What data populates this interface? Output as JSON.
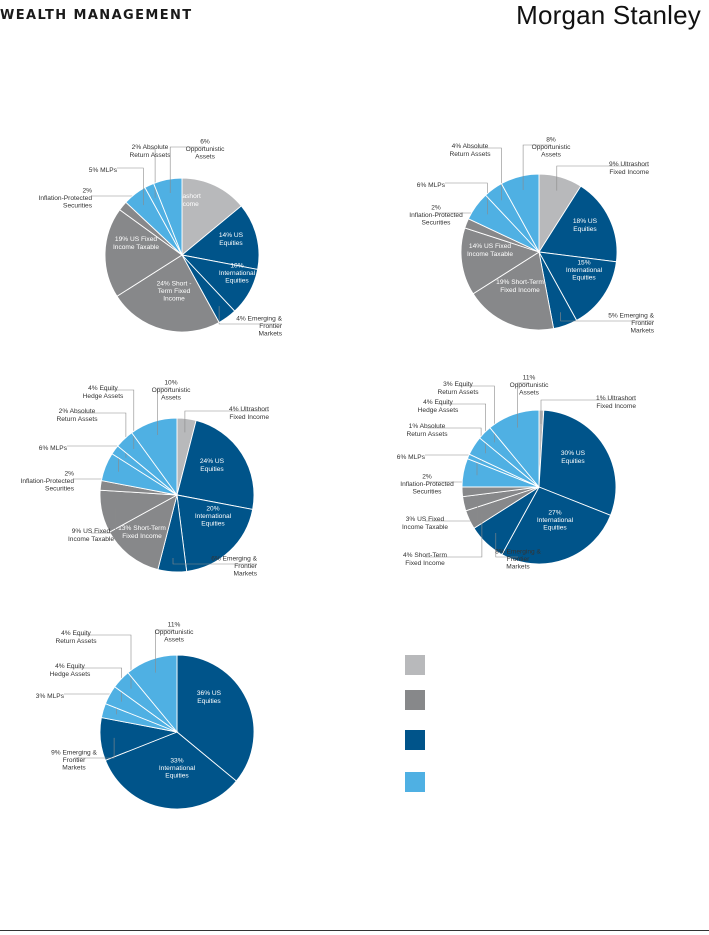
{
  "header": {
    "left": "WEALTH MANAGEMENT",
    "right": "Morgan Stanley"
  },
  "colors": {
    "light_gray": "#b8b9bb",
    "dark_gray": "#87888a",
    "navy": "#00548a",
    "light_blue": "#4fb0e3"
  },
  "legend": {
    "swatches": [
      "light_gray",
      "dark_gray",
      "navy",
      "light_blue"
    ]
  },
  "chart_data": [
    {
      "type": "pie",
      "slices": [
        {
          "label": "14% Ultrashort Fixed Income",
          "value": 14,
          "color": "light_gray"
        },
        {
          "label": "14% US Equities",
          "value": 14,
          "color": "navy"
        },
        {
          "label": "10% International Equities",
          "value": 10,
          "color": "navy"
        },
        {
          "label": "4% Emerging & Frontier Markets",
          "value": 4,
          "color": "navy"
        },
        {
          "label": "24% Short - Term Fixed Income",
          "value": 24,
          "color": "dark_gray"
        },
        {
          "label": "19% US Fixed Income Taxable",
          "value": 19,
          "color": "dark_gray"
        },
        {
          "label": "2% Inflation-Protected Securities",
          "value": 2,
          "color": "dark_gray"
        },
        {
          "label": "5% MLPs",
          "value": 5,
          "color": "light_blue"
        },
        {
          "label": "2% Absolute Return Assets",
          "value": 2,
          "color": "light_blue"
        },
        {
          "label": "6% Opportunistic Assets",
          "value": 6,
          "color": "light_blue"
        }
      ]
    },
    {
      "type": "pie",
      "slices": [
        {
          "label": "9% Ultrashort Fixed Income",
          "value": 9,
          "color": "light_gray"
        },
        {
          "label": "18% US Equities",
          "value": 18,
          "color": "navy"
        },
        {
          "label": "15% International Equities",
          "value": 15,
          "color": "navy"
        },
        {
          "label": "5% Emerging & Frontier Markets",
          "value": 5,
          "color": "navy"
        },
        {
          "label": "19% Short-Term Fixed Income",
          "value": 19,
          "color": "dark_gray"
        },
        {
          "label": "14% US Fixed Income Taxable",
          "value": 14,
          "color": "dark_gray"
        },
        {
          "label": "2% Inflation-Protected Securities",
          "value": 2,
          "color": "dark_gray"
        },
        {
          "label": "6% MLPs",
          "value": 6,
          "color": "light_blue"
        },
        {
          "label": "4% Absolute Return Assets",
          "value": 4,
          "color": "light_blue"
        },
        {
          "label": "8% Opportunistic Assets",
          "value": 8,
          "color": "light_blue"
        }
      ]
    },
    {
      "type": "pie",
      "slices": [
        {
          "label": "4% Ultrashort Fixed Income",
          "value": 4,
          "color": "light_gray"
        },
        {
          "label": "24% US Equities",
          "value": 24,
          "color": "navy"
        },
        {
          "label": "20% International Equities",
          "value": 20,
          "color": "navy"
        },
        {
          "label": "6% Emerging & Frontier Markets",
          "value": 6,
          "color": "navy"
        },
        {
          "label": "13% Short-Term Fixed Income",
          "value": 13,
          "color": "dark_gray"
        },
        {
          "label": "9% US Fixed Income Taxable",
          "value": 9,
          "color": "dark_gray"
        },
        {
          "label": "2% Inflation-Protected Securities",
          "value": 2,
          "color": "dark_gray"
        },
        {
          "label": "6% MLPs",
          "value": 6,
          "color": "light_blue"
        },
        {
          "label": "2% Absolute Return Assets",
          "value": 2,
          "color": "light_blue"
        },
        {
          "label": "4% Equity Hedge Assets",
          "value": 4,
          "color": "light_blue"
        },
        {
          "label": "10% Opportunistic Assets",
          "value": 10,
          "color": "light_blue"
        }
      ]
    },
    {
      "type": "pie",
      "slices": [
        {
          "label": "1% Ultrashort Fixed Income",
          "value": 1,
          "color": "light_gray"
        },
        {
          "label": "30% US Equities",
          "value": 30,
          "color": "navy"
        },
        {
          "label": "27% International Equities",
          "value": 27,
          "color": "navy"
        },
        {
          "label": "8% Emerging & Frontier Markets",
          "value": 8,
          "color": "navy"
        },
        {
          "label": "4% Short-Term Fixed Income",
          "value": 4,
          "color": "dark_gray"
        },
        {
          "label": "3% US Fixed Income Taxable",
          "value": 3,
          "color": "dark_gray"
        },
        {
          "label": "2% Inflation-Protected Securities",
          "value": 2,
          "color": "dark_gray"
        },
        {
          "label": "6% MLPs",
          "value": 6,
          "color": "light_blue"
        },
        {
          "label": "1% Absolute Return Assets",
          "value": 1,
          "color": "light_blue"
        },
        {
          "label": "4% Equity Hedge Assets",
          "value": 4,
          "color": "light_blue"
        },
        {
          "label": "3% Equity Return Assets",
          "value": 3,
          "color": "light_blue"
        },
        {
          "label": "11% Opportunistic Assets",
          "value": 11,
          "color": "light_blue"
        }
      ]
    },
    {
      "type": "pie",
      "slices": [
        {
          "label": "36% US Equities",
          "value": 36,
          "color": "navy"
        },
        {
          "label": "33% International Equities",
          "value": 33,
          "color": "navy"
        },
        {
          "label": "9% Emerging & Frontier Markets",
          "value": 9,
          "color": "navy"
        },
        {
          "label": "3% MLPs",
          "value": 3,
          "color": "light_blue"
        },
        {
          "label": "4% Equity Hedge Assets",
          "value": 4,
          "color": "light_blue"
        },
        {
          "label": "4% Equity Return Assets",
          "value": 4,
          "color": "light_blue"
        },
        {
          "label": "11% Opportunistic Assets",
          "value": 11,
          "color": "light_blue"
        }
      ]
    }
  ]
}
